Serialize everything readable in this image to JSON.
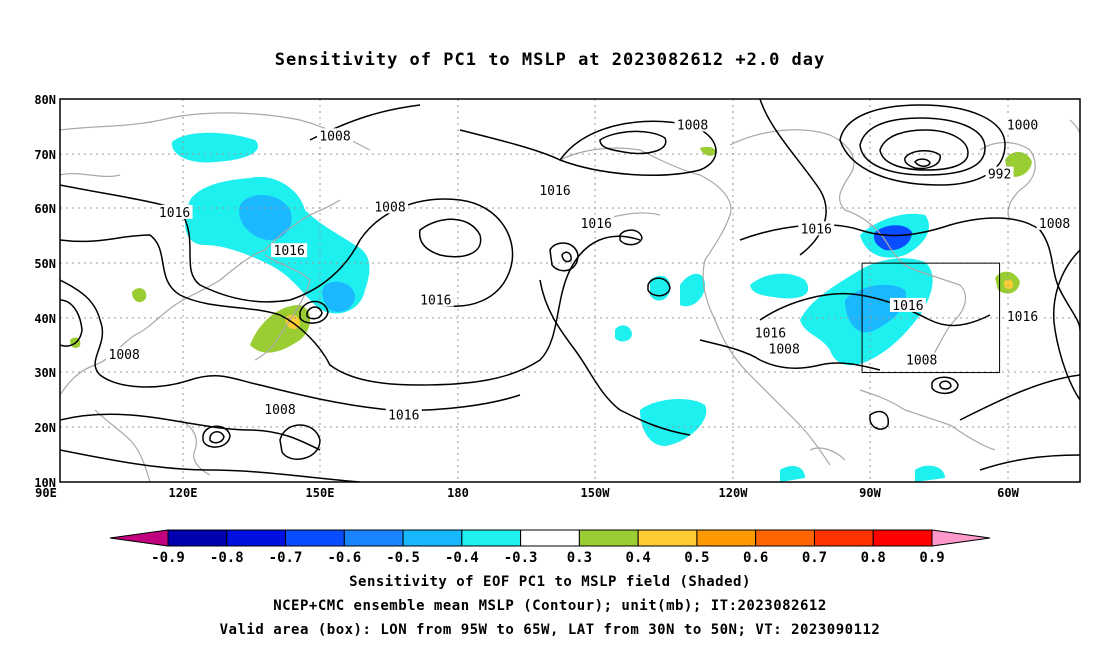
{
  "title": "Sensitivity of PC1 to MSLP at 2023082612 +2.0 day",
  "axes": {
    "lat_labels": [
      "80N",
      "70N",
      "60N",
      "50N",
      "40N",
      "30N",
      "20N",
      "10N"
    ],
    "lon_labels": [
      "90E",
      "120E",
      "150E",
      "180",
      "150W",
      "120W",
      "90W",
      "60W"
    ]
  },
  "contour_labels": [
    {
      "text": "1008",
      "lon": 150,
      "lat": 73
    },
    {
      "text": "1008",
      "lon": -132,
      "lat": 75
    },
    {
      "text": "1000",
      "lon": -60,
      "lat": 75
    },
    {
      "text": "992",
      "lon": -65,
      "lat": 66
    },
    {
      "text": "1016",
      "lon": -162,
      "lat": 63
    },
    {
      "text": "1016",
      "lon": -153,
      "lat": 57
    },
    {
      "text": "1016",
      "lon": 115,
      "lat": 59
    },
    {
      "text": "1008",
      "lon": 162,
      "lat": 60
    },
    {
      "text": "1016",
      "lon": -105,
      "lat": 56
    },
    {
      "text": "1008",
      "lon": -53,
      "lat": 57
    },
    {
      "text": "1016",
      "lon": 140,
      "lat": 52
    },
    {
      "text": "1016",
      "lon": 172,
      "lat": 43
    },
    {
      "text": "1016",
      "lon": -85,
      "lat": 42
    },
    {
      "text": "1016",
      "lon": -60,
      "lat": 40
    },
    {
      "text": "1016",
      "lon": -115,
      "lat": 37
    },
    {
      "text": "1008",
      "lon": -112,
      "lat": 34
    },
    {
      "text": "1008",
      "lon": -82,
      "lat": 32
    },
    {
      "text": "1008",
      "lon": 104,
      "lat": 33
    },
    {
      "text": "1008",
      "lon": 138,
      "lat": 23
    },
    {
      "text": "1016",
      "lon": 165,
      "lat": 22
    }
  ],
  "valid_box": {
    "lon_min": -95,
    "lon_max": -65,
    "lat_min": 30,
    "lat_max": 50
  },
  "colorbar": {
    "labels": [
      "-0.9",
      "-0.8",
      "-0.7",
      "-0.6",
      "-0.5",
      "-0.4",
      "-0.3",
      "0.3",
      "0.4",
      "0.5",
      "0.6",
      "0.7",
      "0.8",
      "0.9"
    ],
    "colors": [
      "#c0007f",
      "#0000b0",
      "#0010e0",
      "#0a4cff",
      "#1a84ff",
      "#17b8ff",
      "#1ef0f0",
      "#ffffff",
      "#9acd32",
      "#ffcc33",
      "#ff9900",
      "#ff6600",
      "#ff3300",
      "#ff0000",
      "#ff99cc"
    ]
  },
  "captions": [
    "Sensitivity of EOF PC1 to MSLP field (Shaded)",
    "NCEP+CMC ensemble mean MSLP (Contour); unit(mb); IT:2023082612",
    "Valid area (box): LON from 95W to 65W, LAT from 30N to 50N; VT: 2023090112"
  ]
}
